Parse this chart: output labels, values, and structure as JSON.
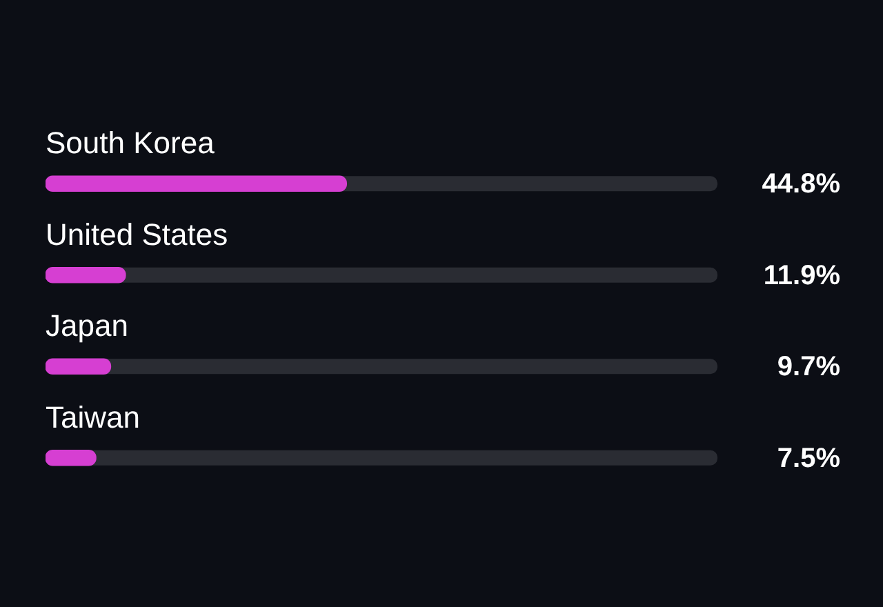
{
  "chart_data": {
    "type": "bar",
    "orientation": "horizontal",
    "categories": [
      "South Korea",
      "United States",
      "Japan",
      "Taiwan"
    ],
    "values": [
      44.8,
      11.9,
      9.7,
      7.5
    ],
    "value_labels": [
      "44.8%",
      "11.9%",
      "9.7%",
      "7.5%"
    ],
    "color": "#d63fd2",
    "xlim": [
      0,
      100
    ],
    "tick_labels": "y"
  }
}
